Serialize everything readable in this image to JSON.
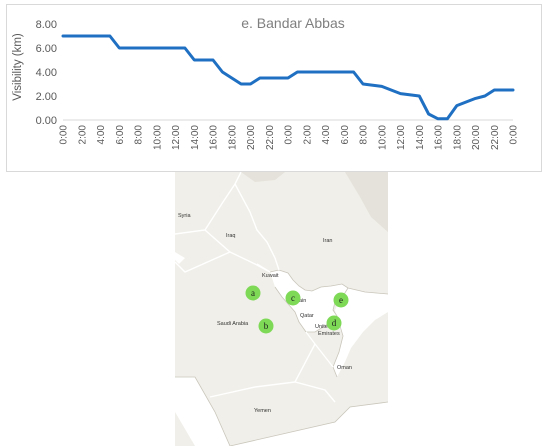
{
  "chart_data": {
    "type": "line",
    "title": "e. Bandar Abbas",
    "xlabel": "",
    "ylabel": "Visibility (km)",
    "ylim": [
      0,
      8
    ],
    "y_ticks": [
      "0.00",
      "2.00",
      "4.00",
      "6.00",
      "8.00"
    ],
    "x_ticks": [
      "0:00",
      "2:00",
      "4:00",
      "6:00",
      "8:00",
      "10:00",
      "12:00",
      "14:00",
      "16:00",
      "18:00",
      "20:00",
      "22:00",
      "0:00",
      "2:00",
      "4:00",
      "6:00",
      "8:00",
      "10:00",
      "12:00",
      "14:00",
      "16:00",
      "18:00",
      "20:00",
      "22:00",
      "0:00"
    ],
    "grid": false,
    "series": [
      {
        "color": "#1f6fc3",
        "x_hours": [
          0,
          5,
          6,
          13,
          14,
          16,
          17,
          19,
          20,
          21,
          24,
          25,
          31,
          32,
          34,
          35,
          36,
          38,
          39,
          40,
          41,
          42,
          43,
          44,
          45,
          46,
          47,
          48
        ],
        "values": [
          7.0,
          7.0,
          6.0,
          6.0,
          5.0,
          5.0,
          4.0,
          3.0,
          3.0,
          3.5,
          3.5,
          4.0,
          4.0,
          3.0,
          2.8,
          2.5,
          2.2,
          2.0,
          0.5,
          0.1,
          0.1,
          1.2,
          1.5,
          1.8,
          2.0,
          2.5,
          2.5,
          2.5
        ]
      }
    ]
  },
  "map": {
    "countries": {
      "syria": "Syria",
      "iraq": "Iraq",
      "iran": "Iran",
      "kuwait": "Kuwait",
      "bahrain": "ain",
      "qatar": "Qatar",
      "saudi_arabia": "Saudi Arabia",
      "uae_1": "Unite",
      "uae_2": "Emirates",
      "oman": "Oman",
      "yemen": "Yemen"
    },
    "markers": [
      {
        "id": "a",
        "label": "a"
      },
      {
        "id": "b",
        "label": "b"
      },
      {
        "id": "c",
        "label": "c"
      },
      {
        "id": "d",
        "label": "d"
      },
      {
        "id": "e",
        "label": "e"
      }
    ],
    "colors": {
      "marker": "#7ed957",
      "land": "#f0efe9",
      "sea": "#ffffff",
      "border": "#ffffff",
      "coast": "#c9c6bb"
    }
  }
}
